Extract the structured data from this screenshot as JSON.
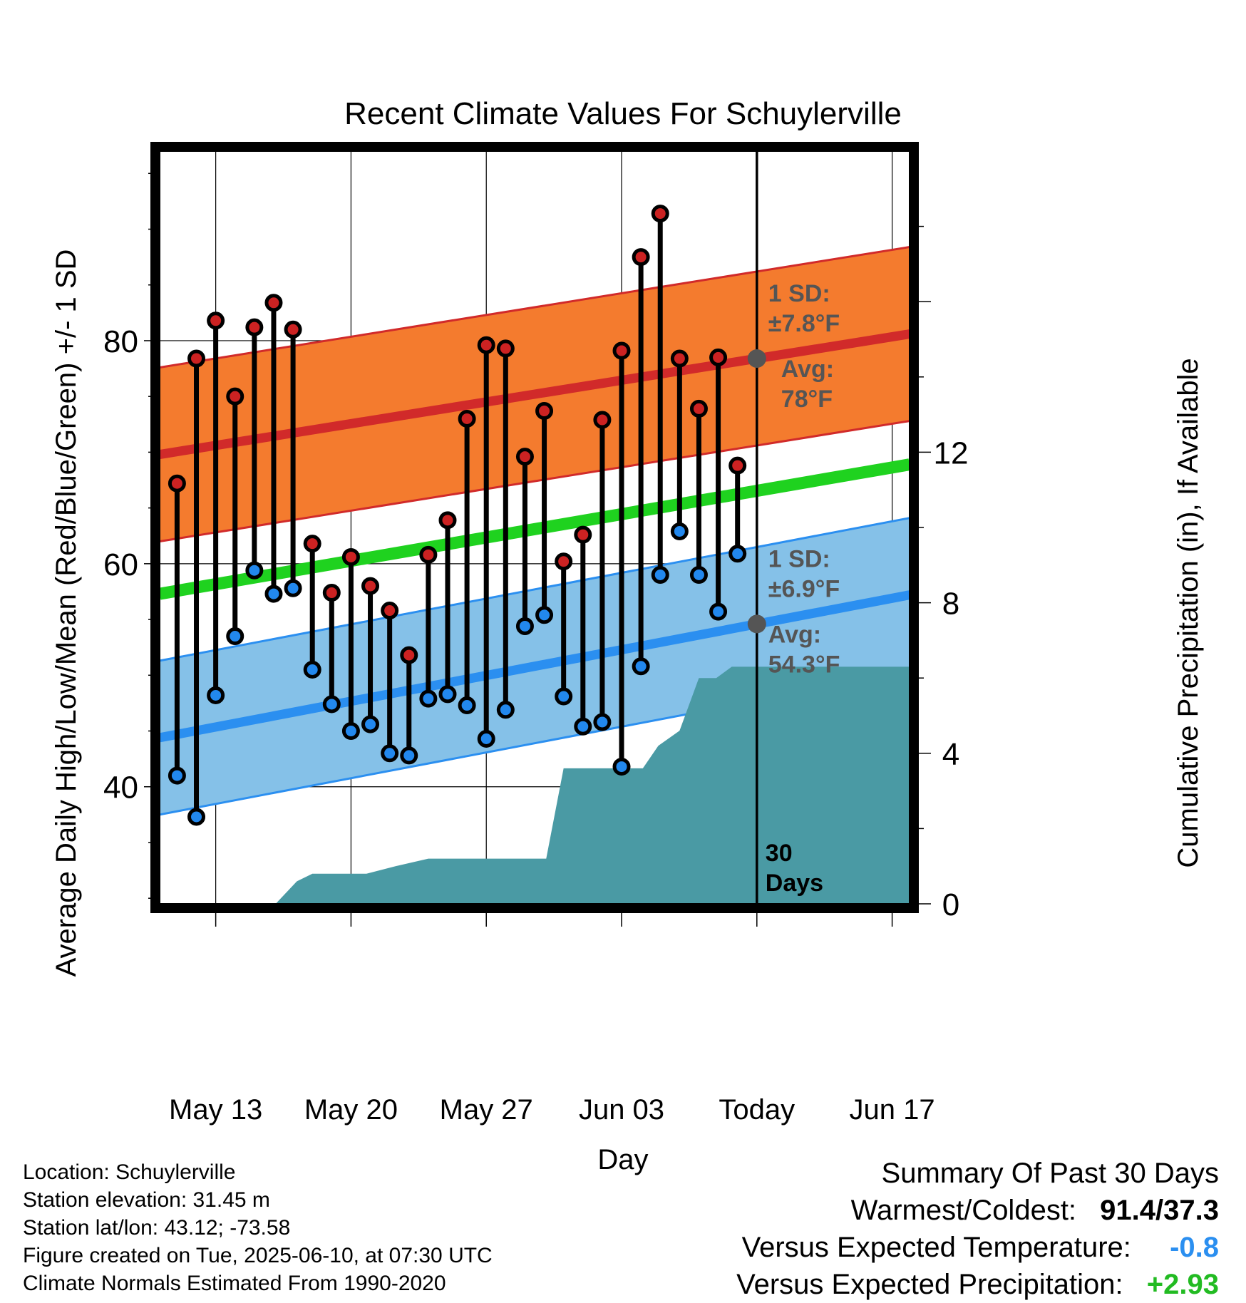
{
  "chart_data": {
    "type": "line",
    "title": "Recent Climate Values For Schuylerville",
    "xlabel": "Day",
    "ylabel": "Average Daily High/Low/Mean (Red/Blue/Green) +/- 1 SD",
    "y2label": "Cumulative Precipitation (in), If Available",
    "ylim": [
      29.5,
      97
    ],
    "y2lim": [
      0,
      20
    ],
    "xlim": [
      10.1,
      48.9
    ],
    "y_ticks": [
      "40",
      "60",
      "80"
    ],
    "y2_ticks": [
      "0",
      "4",
      "8",
      "12"
    ],
    "x_ticks": [
      {
        "day": 13,
        "label": "May 13"
      },
      {
        "day": 20,
        "label": "May 20"
      },
      {
        "day": 27,
        "label": "May 27"
      },
      {
        "day": 34,
        "label": "Jun 03"
      },
      {
        "day": 41,
        "label": "Today"
      },
      {
        "day": 48,
        "label": "Jun 17"
      }
    ],
    "grid": true,
    "days": [
      11,
      12,
      13,
      14,
      15,
      16,
      17,
      18,
      19,
      20,
      21,
      22,
      23,
      24,
      25,
      26,
      27,
      28,
      29,
      30,
      31,
      32,
      33,
      34,
      35,
      36,
      37,
      38,
      39,
      40
    ],
    "highs": [
      67.2,
      78.4,
      81.8,
      75.0,
      81.2,
      83.4,
      81.0,
      61.8,
      57.4,
      60.6,
      58.0,
      55.8,
      51.8,
      60.8,
      63.9,
      73.0,
      79.6,
      79.3,
      69.6,
      73.7,
      60.2,
      62.6,
      72.9,
      79.1,
      87.5,
      91.4,
      78.4,
      73.9,
      78.5,
      68.8
    ],
    "lows": [
      41.0,
      37.3,
      48.2,
      53.5,
      59.4,
      57.3,
      57.8,
      50.5,
      47.4,
      45.0,
      45.6,
      43.0,
      42.8,
      47.9,
      48.3,
      47.3,
      44.3,
      46.9,
      54.4,
      55.4,
      48.1,
      45.4,
      45.8,
      41.8,
      50.8,
      59.0,
      62.9,
      59.0,
      55.7,
      60.9
    ],
    "normal_high": {
      "start": 69.8,
      "end": 80.6,
      "sd": 7.8
    },
    "normal_low": {
      "start": 44.4,
      "end": 57.2,
      "sd": 6.9
    },
    "normal_mean": {
      "start": 57.3,
      "end": 68.9
    },
    "precip_cumulative": [
      {
        "day": 16.1,
        "value": 0
      },
      {
        "day": 17.2,
        "value": 0.6
      },
      {
        "day": 18.0,
        "value": 0.8
      },
      {
        "day": 20.8,
        "value": 0.8
      },
      {
        "day": 22.3,
        "value": 1.0
      },
      {
        "day": 24.0,
        "value": 1.2
      },
      {
        "day": 30.1,
        "value": 1.2
      },
      {
        "day": 31.0,
        "value": 3.6
      },
      {
        "day": 35.1,
        "value": 3.6
      },
      {
        "day": 35.9,
        "value": 4.2
      },
      {
        "day": 37.0,
        "value": 4.6
      },
      {
        "day": 38.0,
        "value": 6.0
      },
      {
        "day": 38.9,
        "value": 6.0
      },
      {
        "day": 39.7,
        "value": 6.3
      },
      {
        "day": 48.9,
        "value": 6.3
      }
    ],
    "annotations": {
      "high_sd": "1 SD:",
      "high_sd_val": "±7.8°F",
      "high_avg": "Avg:",
      "high_avg_val": "78°F",
      "low_sd": "1 SD:",
      "low_sd_val": "±6.9°F",
      "low_avg": "Avg:",
      "low_avg_val": "54.3°F",
      "window_1": "30",
      "window_2": "Days"
    },
    "colors": {
      "high_band": "#f47b2e",
      "high_line": "#d12a2a",
      "low_band": "#85c1e8",
      "low_line": "#2b8ff0",
      "mean_line": "#1fd21f",
      "precip": "#4a9aa4",
      "high_point": "#cc2222",
      "low_point": "#2288ee",
      "avg_marker": "#555555"
    }
  },
  "info": {
    "location": "Location: Schuylerville",
    "elevation": "Station elevation: 31.45 m",
    "latlon": "Station lat/lon: 43.12; -73.58",
    "created": "Figure created on Tue, 2025-06-10, at 07:30 UTC",
    "normals": "Climate Normals Estimated From 1990-2020"
  },
  "summary": {
    "title": "Summary Of Past 30 Days",
    "warm_cold_label": "Warmest/Coldest:",
    "warm_cold_value": "91.4/37.3",
    "temp_label": "Versus Expected Temperature:",
    "temp_value": "-0.8",
    "temp_color": "#2b8ff0",
    "precip_label": "Versus Expected Precipitation:",
    "precip_value": "+2.93",
    "precip_color": "#22bb22"
  }
}
